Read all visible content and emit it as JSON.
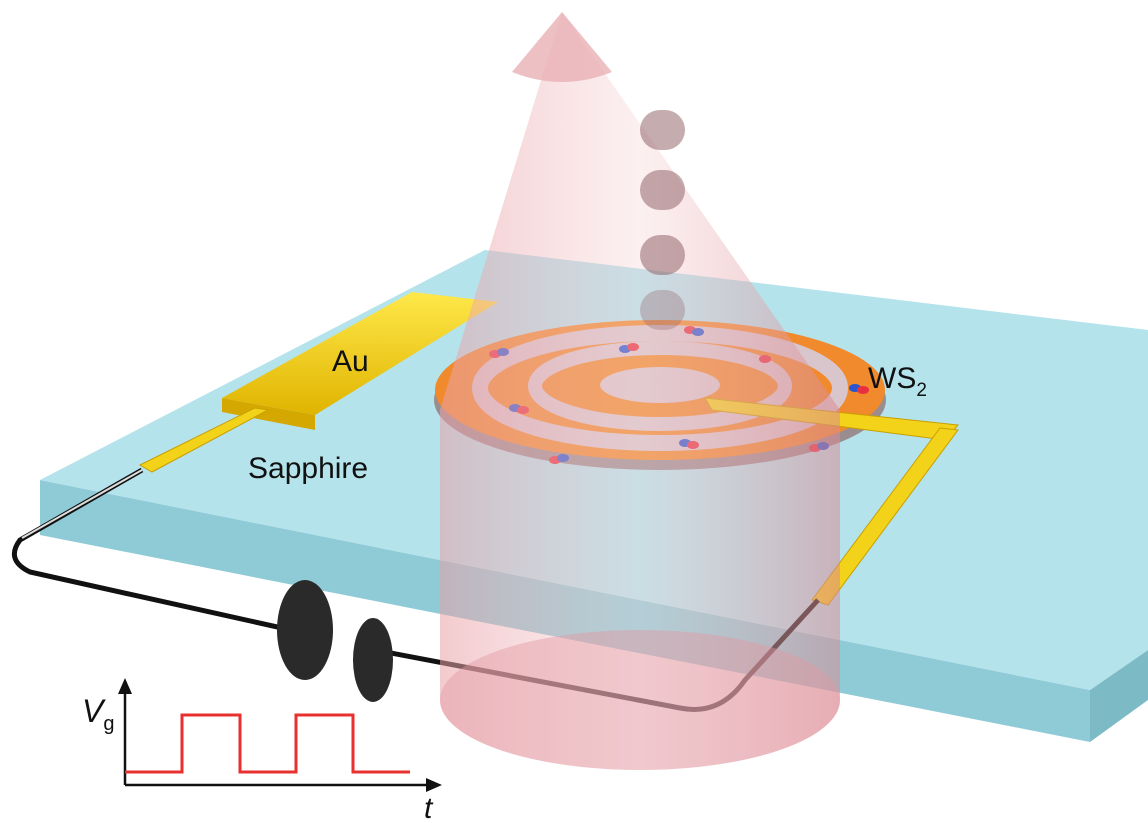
{
  "labels": {
    "au": "Au",
    "sapphire": "Sapphire",
    "ws2": {
      "main": "WS",
      "sub": "2"
    },
    "voltage": {
      "main": "V",
      "sub": "g"
    },
    "time": "t"
  }
}
